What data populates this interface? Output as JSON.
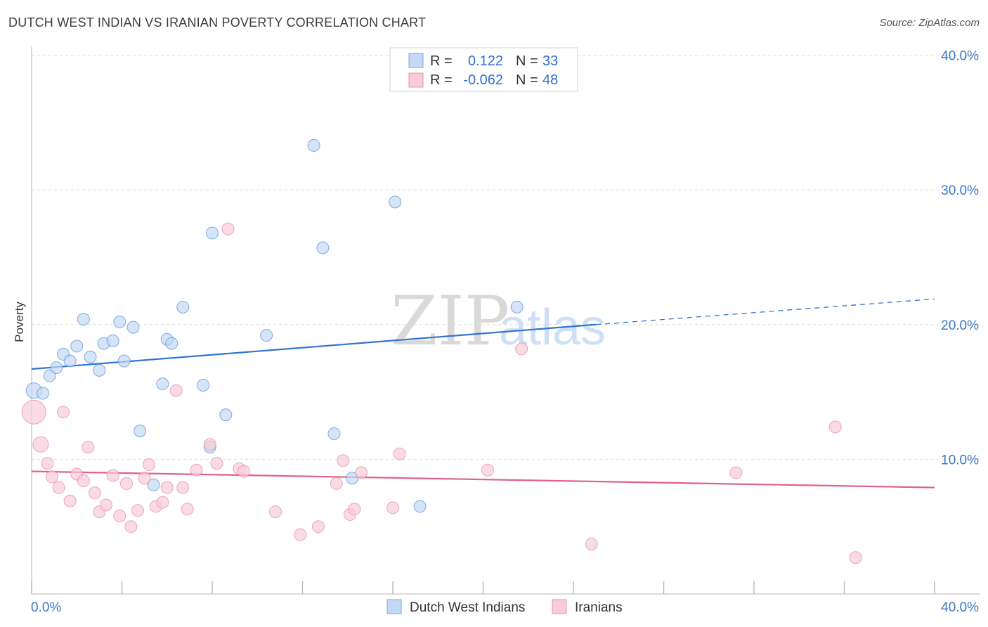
{
  "title": "DUTCH WEST INDIAN VS IRANIAN POVERTY CORRELATION CHART",
  "source": "Source: ZipAtlas.com",
  "watermark": {
    "part1": "ZIP",
    "part2": "atlas"
  },
  "legend": {
    "rows": [
      {
        "r_label": "R =",
        "r_value": "0.122",
        "n_label": "N =",
        "n_value": "33"
      },
      {
        "r_label": "R =",
        "r_value": "-0.062",
        "n_label": "N =",
        "n_value": "48"
      }
    ]
  },
  "bottom_legend": [
    "Dutch West Indians",
    "Iranians"
  ],
  "chart_data": {
    "type": "scatter",
    "ylabel": "Poverty",
    "xlim": [
      0,
      40
    ],
    "ylim": [
      0,
      40
    ],
    "x_tick_labels": [
      "0.0%",
      "40.0%"
    ],
    "y_ticks": [
      {
        "value": 10,
        "label": "10.0%"
      },
      {
        "value": 20,
        "label": "20.0%"
      },
      {
        "value": 30,
        "label": "30.0%"
      },
      {
        "value": 40,
        "label": "40.0%"
      }
    ],
    "grid": true,
    "series": [
      {
        "name": "Dutch West Indians",
        "color": "#5b93dd",
        "fill": "#c3d8f3",
        "line_color": "#2f73d0",
        "trend": {
          "x0": 0,
          "y0": 16.7,
          "x1": 25,
          "y1": 20.0,
          "dash_x1": 40,
          "dash_y1": 21.9
        },
        "points": [
          [
            0.1,
            15.1
          ],
          [
            0.5,
            14.9
          ],
          [
            0.8,
            16.2
          ],
          [
            1.1,
            16.8
          ],
          [
            1.4,
            17.8
          ],
          [
            1.7,
            17.3
          ],
          [
            2.0,
            18.4
          ],
          [
            2.3,
            20.4
          ],
          [
            2.6,
            17.6
          ],
          [
            3.0,
            16.6
          ],
          [
            3.2,
            18.6
          ],
          [
            3.6,
            18.8
          ],
          [
            3.9,
            20.2
          ],
          [
            4.1,
            17.3
          ],
          [
            4.5,
            19.8
          ],
          [
            4.8,
            12.1
          ],
          [
            5.4,
            8.1
          ],
          [
            5.8,
            15.6
          ],
          [
            6.0,
            18.9
          ],
          [
            6.2,
            18.6
          ],
          [
            6.7,
            21.3
          ],
          [
            7.6,
            15.5
          ],
          [
            7.9,
            10.9
          ],
          [
            8.0,
            26.8
          ],
          [
            8.6,
            13.3
          ],
          [
            10.4,
            19.2
          ],
          [
            12.5,
            33.3
          ],
          [
            12.9,
            25.7
          ],
          [
            13.4,
            11.9
          ],
          [
            14.2,
            8.6
          ],
          [
            16.1,
            29.1
          ],
          [
            17.2,
            6.5
          ],
          [
            21.5,
            21.3
          ]
        ]
      },
      {
        "name": "Iranians",
        "color": "#e98aa8",
        "fill": "#f8ccd9",
        "line_color": "#e0608a",
        "trend": {
          "x0": 0,
          "y0": 9.1,
          "x1": 40,
          "y1": 7.9
        },
        "points": [
          [
            0.1,
            13.5
          ],
          [
            0.4,
            11.1
          ],
          [
            0.7,
            9.7
          ],
          [
            0.9,
            8.7
          ],
          [
            1.2,
            7.9
          ],
          [
            1.4,
            13.5
          ],
          [
            1.7,
            6.9
          ],
          [
            2.0,
            8.9
          ],
          [
            2.3,
            8.4
          ],
          [
            2.5,
            10.9
          ],
          [
            2.8,
            7.5
          ],
          [
            3.0,
            6.1
          ],
          [
            3.3,
            6.6
          ],
          [
            3.6,
            8.8
          ],
          [
            3.9,
            5.8
          ],
          [
            4.2,
            8.2
          ],
          [
            4.4,
            5.0
          ],
          [
            4.7,
            6.2
          ],
          [
            5.0,
            8.6
          ],
          [
            5.2,
            9.6
          ],
          [
            5.5,
            6.5
          ],
          [
            5.8,
            6.8
          ],
          [
            6.0,
            7.9
          ],
          [
            6.4,
            15.1
          ],
          [
            6.7,
            7.9
          ],
          [
            6.9,
            6.3
          ],
          [
            7.3,
            9.2
          ],
          [
            7.9,
            11.1
          ],
          [
            8.2,
            9.7
          ],
          [
            8.7,
            27.1
          ],
          [
            9.2,
            9.3
          ],
          [
            9.4,
            9.1
          ],
          [
            10.8,
            6.1
          ],
          [
            11.9,
            4.4
          ],
          [
            12.7,
            5.0
          ],
          [
            13.5,
            8.2
          ],
          [
            13.8,
            9.9
          ],
          [
            14.1,
            5.9
          ],
          [
            14.3,
            6.3
          ],
          [
            14.6,
            9.0
          ],
          [
            16.0,
            6.4
          ],
          [
            16.3,
            10.4
          ],
          [
            20.2,
            9.2
          ],
          [
            21.7,
            18.2
          ],
          [
            24.8,
            3.7
          ],
          [
            31.2,
            9.0
          ],
          [
            35.6,
            12.4
          ],
          [
            36.5,
            2.7
          ]
        ]
      }
    ]
  }
}
